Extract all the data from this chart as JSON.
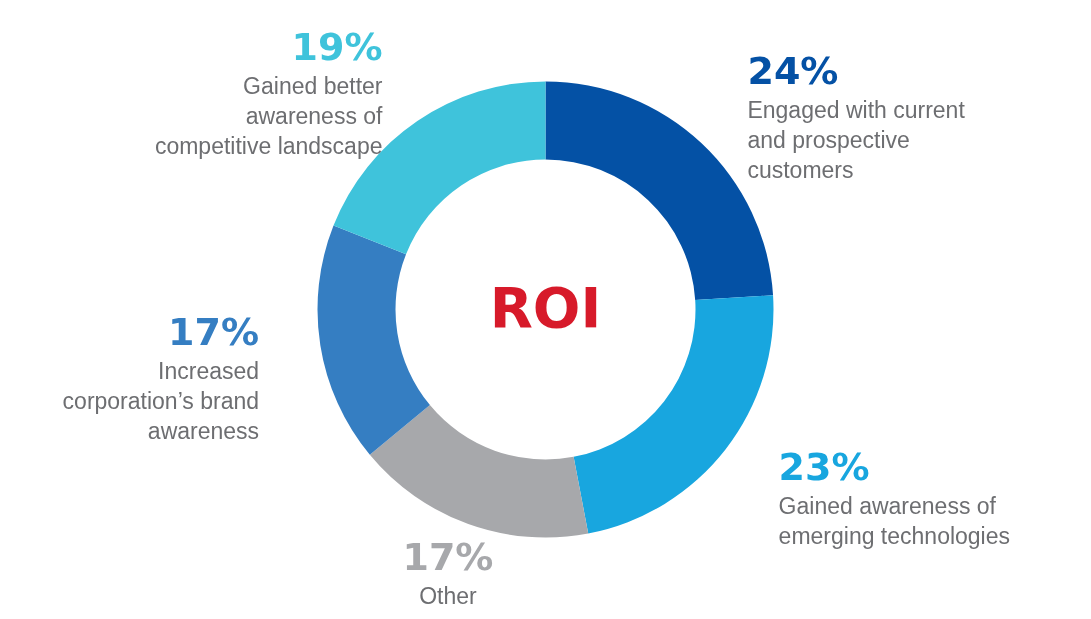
{
  "chart_data": {
    "type": "donut",
    "categories": [
      "Engaged with current and prospective customers",
      "Gained awareness of emerging technologies",
      "Other",
      "Increased corporation’s brand awareness",
      "Gained better awareness of competitive landscape"
    ],
    "values": [
      24,
      23,
      17,
      17,
      19
    ],
    "value_labels": [
      "24%",
      "23%",
      "17%",
      "17%",
      "19%"
    ],
    "colors": [
      "#0451a5",
      "#18a6df",
      "#a7a8ab",
      "#357ec2",
      "#3fc3db"
    ],
    "annotations": [
      "ROI"
    ]
  }
}
